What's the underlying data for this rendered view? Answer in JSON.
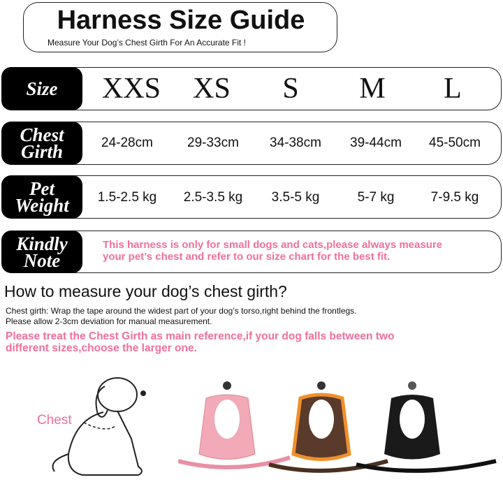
{
  "title": "Harness Size Guide",
  "subtitle": "Measure Your Dog’s Chest Girth For An Accurate Fit !",
  "size_label": "Size",
  "sizes": [
    "XXS",
    "XS",
    "S",
    "M",
    "L"
  ],
  "chest_label": [
    "Chest",
    "Girth"
  ],
  "chest": [
    "24-28cm",
    "29-33cm",
    "34-38cm",
    "39-44cm",
    "45-50cm"
  ],
  "weight_label": [
    "Pet",
    "Weight"
  ],
  "weight": [
    "1.5-2.5 kg",
    "2.5-3.5 kg",
    "3.5-5 kg",
    "5-7 kg",
    "7-9.5 kg"
  ],
  "note_label": [
    "Kindly",
    "Note"
  ],
  "note": [
    "This harness is only for small dogs and cats,please always measure",
    "your pet’s chest and refer to our size chart for the best fit."
  ],
  "howto": {
    "heading": "How to measure your dog’s chest girth?",
    "lines": [
      "Chest girth: Wrap the tape around the widest part of your dog’s torso,right behind the frontlegs.",
      "Please allow 2-3cm deviation for manual measurement."
    ],
    "pink": [
      "Please treat the Chest Girth as main reference,if your dog falls between two",
      "different sizes,choose the larger one."
    ]
  },
  "illustration_label": "Chest",
  "colors": {
    "pink": "#f0709a",
    "harnesses": [
      "#f2a9b8",
      "#f0902a",
      "#1a1a1a"
    ]
  }
}
